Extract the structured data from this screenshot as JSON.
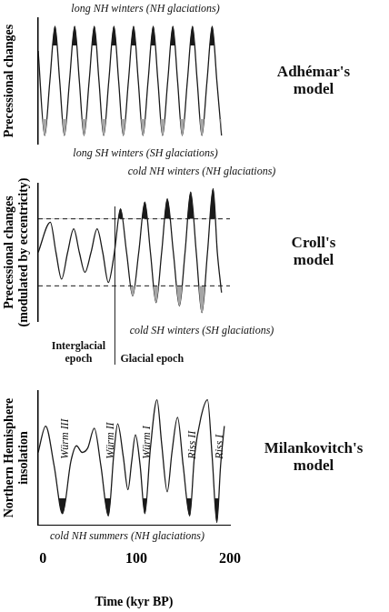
{
  "chart_data": [
    {
      "type": "line",
      "y_label": "Precessional changes",
      "model": "Adhémar's model",
      "notes": {
        "top": "long NH winters (NH glaciations)",
        "bottom": "long SH winters (SH glaciations)"
      },
      "x": [
        -5,
        2,
        7.5,
        13,
        18,
        23,
        28.5,
        34,
        39,
        44,
        49.5,
        55,
        60,
        65,
        70.5,
        76,
        81,
        86,
        91.5,
        97,
        102,
        107,
        112.5,
        118,
        123,
        128,
        133.5,
        139,
        144,
        149,
        154.5,
        160,
        165,
        170,
        175.5,
        181,
        186,
        191
      ],
      "values": [
        0.55,
        -1,
        0,
        1,
        0,
        -1,
        0,
        1,
        0,
        -1,
        0,
        1,
        0,
        -1,
        0,
        1,
        0,
        -1,
        0,
        1,
        0,
        -1,
        0,
        1,
        0,
        -1,
        0,
        1,
        0,
        -1,
        0,
        1,
        0,
        -1,
        0,
        1,
        0,
        -1
      ],
      "color": "#1a1a1a",
      "xlim": [
        -5,
        200
      ],
      "ylim": [
        -1.15,
        1.15
      ],
      "fill_above": 0.65,
      "fill_below": -0.7,
      "grid": false,
      "tick_labels": false
    },
    {
      "type": "line",
      "y_label": "Precessional changes (modulated by eccentricity)",
      "model": "Croll's model",
      "notes": {
        "top": "cold NH winters (NH glaciations)",
        "bottom": "cold SH winters (SH glaciations)",
        "before_boundary": "Interglacial epoch",
        "after_boundary": "Glacial epoch"
      },
      "x": [
        -5,
        8,
        14,
        20,
        26.5,
        33,
        39,
        45,
        51.5,
        58,
        64,
        70,
        76.5,
        83,
        89.5,
        96,
        102.5,
        109,
        115,
        121,
        127,
        133,
        139.5,
        146,
        152,
        158,
        164,
        170,
        176,
        182,
        186.5,
        191
      ],
      "values": [
        0,
        0.9,
        0,
        -0.8,
        0,
        0.7,
        0,
        -0.6,
        0,
        0.7,
        0,
        -0.9,
        0,
        1.3,
        0,
        -1.3,
        0,
        1.5,
        0,
        -1.5,
        0,
        1.6,
        0,
        -1.6,
        0,
        1.8,
        0,
        -1.8,
        0,
        1.9,
        0,
        -1.2
      ],
      "color": "#1a1a1a",
      "xlim": [
        -5,
        200
      ],
      "ylim": [
        -2.05,
        2.05
      ],
      "dashed_lines": [
        1,
        -1
      ],
      "epoch_boundary": 77,
      "grid": false,
      "tick_labels": false
    },
    {
      "type": "line",
      "y_label": "Northern Hemisphere insolation",
      "model": "Milankovitch's model",
      "x_label": "Time (kyr BP)",
      "notes": {
        "bottom": "cold NH summers (NH glaciations)"
      },
      "events": [
        {
          "label": "Würm III",
          "x": 21
        },
        {
          "label": "Würm II",
          "x": 70
        },
        {
          "label": "Würm I",
          "x": 109
        },
        {
          "label": "Riss II",
          "x": 157
        },
        {
          "label": "Riss I",
          "x": 186
        }
      ],
      "x": [
        -5,
        3,
        12,
        21,
        30,
        36,
        42,
        48,
        55,
        62,
        70,
        76,
        80,
        86,
        91,
        95,
        99,
        104,
        109,
        115,
        122,
        127,
        133,
        138,
        144,
        150,
        157,
        162,
        169,
        176,
        181,
        186,
        190,
        194
      ],
      "values": [
        0.3,
        0.9,
        0,
        -1.1,
        0.1,
        0.45,
        0.3,
        0.4,
        0.85,
        0,
        -1.15,
        0.3,
        0.95,
        0.2,
        -0.55,
        0.1,
        0.7,
        0,
        -1.1,
        0.4,
        1.5,
        0.5,
        -0.6,
        0.3,
        1.1,
        0,
        -1.15,
        0.2,
        1.1,
        1.5,
        0.2,
        -1.3,
        0,
        0.9
      ],
      "color": "#1a1a1a",
      "xlim": [
        -5,
        200
      ],
      "xticks": [
        0,
        100,
        200
      ],
      "ylim": [
        -1.35,
        1.7
      ],
      "fill_below": -0.75,
      "grid": false,
      "tick_labels": "x"
    }
  ]
}
